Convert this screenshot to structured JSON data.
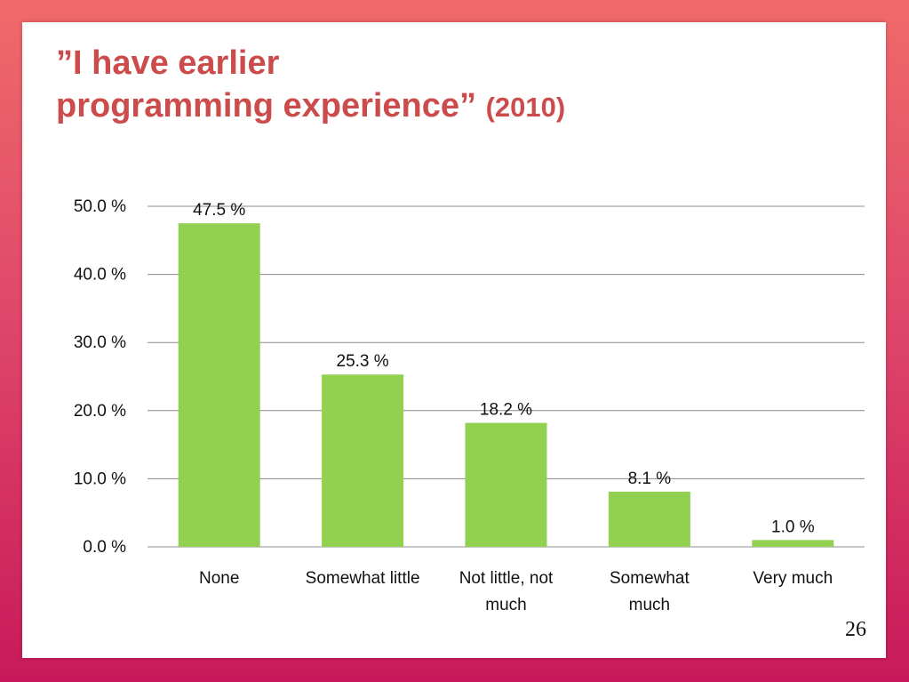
{
  "slide": {
    "title_line1": "”I have earlier",
    "title_line2": "programming experience”",
    "title_suffix": "(2010)",
    "page_number": "26"
  },
  "colors": {
    "bar": "#92d050",
    "title": "#cc4b4b",
    "gridline": "#8c8c8c",
    "frame": "#d92b5e"
  },
  "chart_data": {
    "type": "bar",
    "title": "",
    "xlabel": "",
    "ylabel": "",
    "categories": [
      "None",
      "Somewhat little",
      "Not little, not much",
      "Somewhat much",
      "Very much"
    ],
    "category_label_lines": [
      [
        "None"
      ],
      [
        "Somewhat little"
      ],
      [
        "Not little, not",
        "much"
      ],
      [
        "Somewhat",
        "much"
      ],
      [
        "Very much"
      ]
    ],
    "values": [
      47.5,
      25.3,
      18.2,
      8.1,
      1.0
    ],
    "value_labels": [
      "47.5 %",
      "25.3 %",
      "18.2 %",
      "8.1 %",
      "1.0 %"
    ],
    "ylim": [
      0,
      50
    ],
    "yticks": [
      0,
      10,
      20,
      30,
      40,
      50
    ],
    "ytick_labels": [
      "0.0 %",
      "10.0 %",
      "20.0 %",
      "30.0 %",
      "40.0 %",
      "50.0 %"
    ],
    "grid": true,
    "legend": "none"
  }
}
